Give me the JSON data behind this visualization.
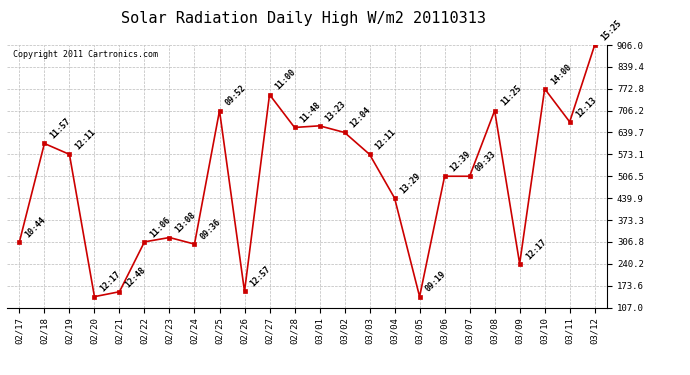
{
  "title": "Solar Radiation Daily High W/m2 20110313",
  "copyright": "Copyright 2011 Cartronics.com",
  "dates": [
    "02/17",
    "02/18",
    "02/19",
    "02/20",
    "02/21",
    "02/22",
    "02/23",
    "02/24",
    "02/25",
    "02/26",
    "02/27",
    "02/28",
    "03/01",
    "03/02",
    "03/03",
    "03/04",
    "03/05",
    "03/06",
    "03/07",
    "03/08",
    "03/09",
    "03/10",
    "03/11",
    "03/12"
  ],
  "values": [
    306.8,
    606.2,
    573.1,
    140.0,
    155.0,
    306.8,
    320.0,
    300.0,
    706.2,
    156.0,
    755.0,
    655.0,
    660.0,
    639.7,
    573.1,
    439.9,
    140.0,
    506.5,
    506.5,
    706.2,
    240.2,
    772.8,
    672.0,
    906.0
  ],
  "times": [
    "10:44",
    "11:57",
    "12:11",
    "12:17",
    "12:48",
    "11:06",
    "13:08",
    "09:36",
    "09:52",
    "12:57",
    "11:00",
    "11:48",
    "13:23",
    "12:04",
    "12:11",
    "13:29",
    "09:19",
    "12:39",
    "09:33",
    "11:25",
    "12:17",
    "14:00",
    "12:13",
    "15:25"
  ],
  "line_color": "#cc0000",
  "marker_color": "#cc0000",
  "background_color": "#ffffff",
  "grid_color": "#bbbbbb",
  "ylim": [
    107.0,
    906.0
  ],
  "yticks": [
    107.0,
    173.6,
    240.2,
    306.8,
    373.3,
    439.9,
    506.5,
    573.1,
    639.7,
    706.2,
    772.8,
    839.4,
    906.0
  ],
  "title_fontsize": 11,
  "annotation_fontsize": 6,
  "copyright_fontsize": 6
}
